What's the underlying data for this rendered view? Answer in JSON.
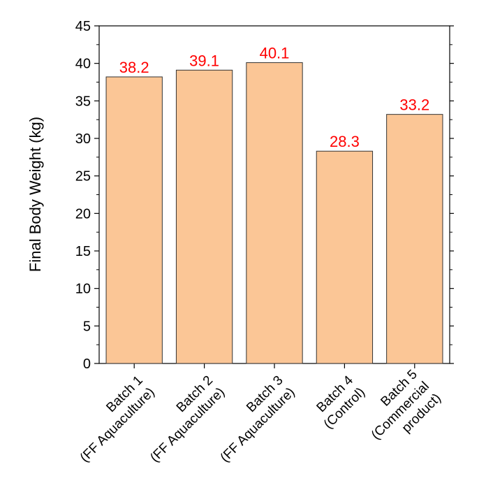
{
  "chart_data": {
    "type": "bar",
    "ylabel": "Final Body Weight (kg)",
    "categories": [
      [
        "Batch 1",
        "(FF Aquaculture)"
      ],
      [
        "Batch 2",
        "(FF Aquaculture)"
      ],
      [
        "Batch 3",
        "(FF Aquaculture)"
      ],
      [
        "Batch 4",
        "(Control)"
      ],
      [
        "Batch 5",
        "(Commercial",
        "product)"
      ]
    ],
    "values": [
      38.2,
      39.1,
      40.1,
      28.3,
      33.2
    ],
    "value_labels": [
      "38.2",
      "39.1",
      "40.1",
      "28.3",
      "33.2"
    ],
    "ylim": [
      0,
      45
    ],
    "yticks": [
      0,
      5,
      10,
      15,
      20,
      25,
      30,
      35,
      40,
      45
    ],
    "grid": false,
    "legend": "none",
    "colors": {
      "bar_fill": "#FBC696",
      "bar_stroke": "#333333",
      "value_label": "#FF0000",
      "axis": "#000000"
    }
  }
}
